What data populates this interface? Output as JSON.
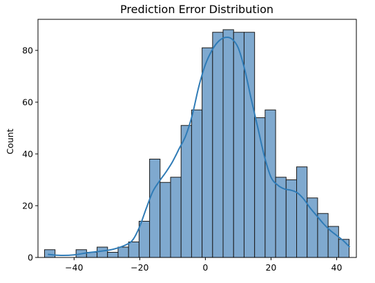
{
  "chart_data": {
    "type": "bar",
    "subtype": "histogram-with-kde",
    "title": "Prediction Error Distribution",
    "xlabel": "",
    "ylabel": "Count",
    "xlim": [
      -51,
      46
    ],
    "ylim": [
      0,
      92
    ],
    "xticks": [
      -40,
      -20,
      0,
      20,
      40
    ],
    "yticks": [
      0,
      20,
      40,
      60,
      80
    ],
    "grid": false,
    "bins": {
      "edges": [
        -49.0,
        -45.8,
        -42.6,
        -39.4,
        -36.2,
        -33.0,
        -29.8,
        -26.6,
        -23.4,
        -20.2,
        -17.0,
        -13.8,
        -10.6,
        -7.4,
        -4.2,
        -1.0,
        2.2,
        5.4,
        8.6,
        11.8,
        15.0,
        18.2,
        21.4,
        24.6,
        27.8,
        31.0,
        34.2,
        37.4,
        40.6,
        43.8
      ],
      "counts": [
        3,
        0,
        0,
        3,
        2,
        4,
        2,
        4,
        6,
        14,
        38,
        29,
        31,
        51,
        57,
        81,
        87,
        88,
        87,
        87,
        54,
        57,
        31,
        30,
        35,
        23,
        17,
        12,
        7
      ]
    },
    "kde": {
      "x": [
        -48,
        -44,
        -40,
        -36,
        -32,
        -28,
        -24,
        -22,
        -20,
        -18,
        -16,
        -14,
        -12,
        -10,
        -8,
        -6,
        -4,
        -2,
        0,
        2,
        4,
        6,
        8,
        10,
        12,
        14,
        16,
        18,
        20,
        22,
        24,
        26,
        28,
        30,
        32,
        34,
        36,
        38,
        40,
        42,
        44
      ],
      "y": [
        1.2,
        0.8,
        1.0,
        1.8,
        2.4,
        3.2,
        5.0,
        7.0,
        12.0,
        19.0,
        25.5,
        29.5,
        33.0,
        37.0,
        42.0,
        47.0,
        55.0,
        66.0,
        74.5,
        80.0,
        83.5,
        85.0,
        84.5,
        81.0,
        72.5,
        61.0,
        50.0,
        39.0,
        31.0,
        28.0,
        26.5,
        26.0,
        25.0,
        22.5,
        19.0,
        16.0,
        13.0,
        10.5,
        8.5,
        6.5,
        4.0
      ]
    },
    "colors": {
      "bar_fill": "#7fa9cf",
      "bar_edge": "#1a1a1a",
      "kde_line": "#2f7bb6"
    }
  }
}
